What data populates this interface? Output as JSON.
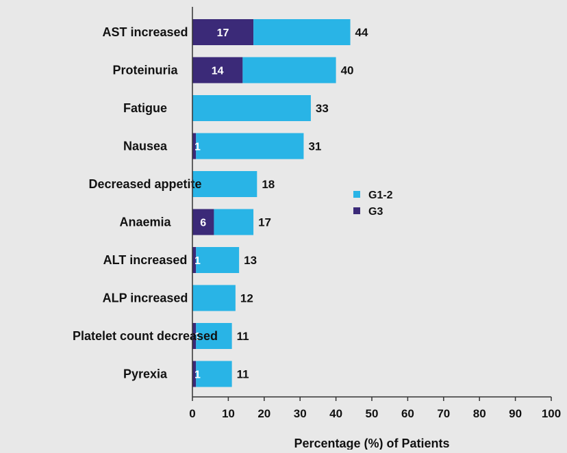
{
  "colors": {
    "background": "#e8e8e8",
    "g12": "#29b4e6",
    "g3": "#3b2a78",
    "axis": "#333333",
    "text": "#111111",
    "g3_text": "#ffffff"
  },
  "chart_data": {
    "type": "bar",
    "orientation": "horizontal",
    "stacked": true,
    "categories": [
      "AST increased",
      "Proteinuria",
      "Fatigue",
      "Nausea",
      "Decreased appetite",
      "Anaemia",
      "ALT increased",
      "ALP increased",
      "Platelet count decreased",
      "Pyrexia"
    ],
    "series": [
      {
        "name": "G3",
        "values": [
          17,
          14,
          0,
          1,
          0,
          6,
          1,
          0,
          1,
          1
        ]
      },
      {
        "name": "G1-2",
        "values": [
          27,
          26,
          33,
          30,
          18,
          11,
          12,
          12,
          10,
          10
        ]
      }
    ],
    "totals": [
      44,
      40,
      33,
      31,
      18,
      17,
      13,
      12,
      11,
      11
    ],
    "g3_labels": [
      "17",
      "14",
      "",
      "1",
      "",
      "6",
      "1",
      "",
      "1",
      "1"
    ],
    "xlabel": "Percentage (%) of Patients",
    "ylabel": "",
    "xlim": [
      0,
      100
    ],
    "xticks": [
      0,
      10,
      20,
      30,
      40,
      50,
      60,
      70,
      80,
      90,
      100
    ],
    "legend": {
      "placement": "right-middle",
      "entries": [
        {
          "name": "G1-2",
          "color": "#29b4e6"
        },
        {
          "name": "G3",
          "color": "#3b2a78"
        }
      ]
    },
    "grid": false
  }
}
